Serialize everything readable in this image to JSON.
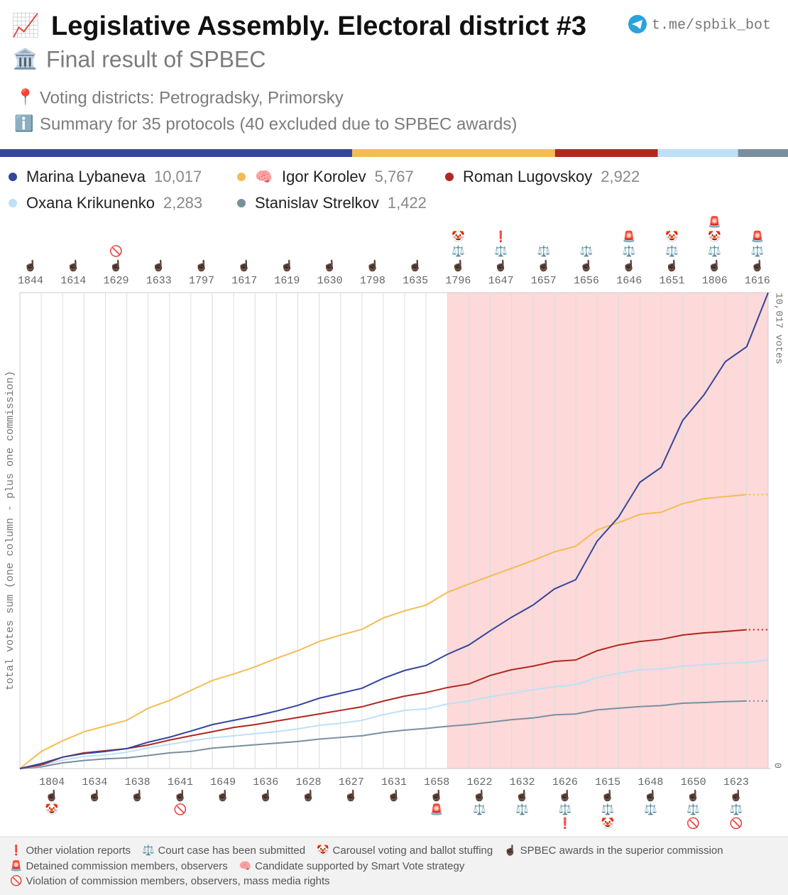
{
  "header": {
    "title_icon": "📈",
    "title": "Legislative Assembly. Electoral district #3",
    "subtitle_icon": "🏛️",
    "subtitle": "Final result of SPBEC",
    "link": "t.me/spbik_bot",
    "districts_icon": "📍",
    "districts": "Voting districts: Petrogradsky, Primorsky",
    "summary_icon": "ℹ️",
    "summary": "Summary for 35 protocols (40 excluded due to SPBEC awards)"
  },
  "chart_data": {
    "type": "line",
    "y_label": "total votes sum (one column - plus one commission)",
    "categories": [
      "1844",
      "1804",
      "1614",
      "1634",
      "1629",
      "1638",
      "1633",
      "1641",
      "1797",
      "1649",
      "1617",
      "1636",
      "1619",
      "1628",
      "1630",
      "1627",
      "1798",
      "1631",
      "1635",
      "1658",
      "1796",
      "1622",
      "1647",
      "1632",
      "1657",
      "1626",
      "1656",
      "1615",
      "1646",
      "1648",
      "1651",
      "1650",
      "1806",
      "1623",
      "1616"
    ],
    "icons": [
      [
        "☝🏿"
      ],
      [
        "☝🏿",
        "🤡"
      ],
      [
        "☝🏿"
      ],
      [
        "☝🏿"
      ],
      [
        "☝🏿",
        "🚫"
      ],
      [
        "☝🏿"
      ],
      [
        "☝🏿"
      ],
      [
        "☝🏿",
        "🚫"
      ],
      [
        "☝🏿"
      ],
      [
        "☝🏿"
      ],
      [
        "☝🏿"
      ],
      [
        "☝🏿"
      ],
      [
        "☝🏿"
      ],
      [
        "☝🏿"
      ],
      [
        "☝🏿"
      ],
      [
        "☝🏿"
      ],
      [
        "☝🏿"
      ],
      [
        "☝🏿"
      ],
      [
        "☝🏿"
      ],
      [
        "☝🏿",
        "🚨"
      ],
      [
        "☝🏿",
        "⚖️",
        "🤡"
      ],
      [
        "☝🏿",
        "⚖️"
      ],
      [
        "☝🏿",
        "⚖️",
        "❗"
      ],
      [
        "☝🏿",
        "⚖️"
      ],
      [
        "☝🏿",
        "⚖️"
      ],
      [
        "☝🏿",
        "⚖️",
        "❗"
      ],
      [
        "☝🏿",
        "⚖️"
      ],
      [
        "☝🏿",
        "⚖️",
        "🤡"
      ],
      [
        "☝🏿",
        "⚖️",
        "🚨"
      ],
      [
        "☝🏿",
        "⚖️"
      ],
      [
        "☝🏿",
        "⚖️",
        "🤡"
      ],
      [
        "☝🏿",
        "⚖️",
        "🚫"
      ],
      [
        "☝🏿",
        "⚖️",
        "🤡",
        "🚨"
      ],
      [
        "☝🏿",
        "⚖️",
        "🚫"
      ],
      [
        "☝🏿",
        "⚖️",
        "🚨"
      ]
    ],
    "shaded_from": "1796",
    "series": [
      {
        "name": "Marina Lybaneva",
        "color": "#34469a",
        "total": 10017,
        "total_label": "10,017",
        "values": [
          105,
          240,
          315,
          360,
          420,
          555,
          660,
          790,
          925,
          1015,
          1105,
          1210,
          1330,
          1480,
          1585,
          1690,
          1900,
          2065,
          2170,
          2405,
          2600,
          2900,
          3185,
          3440,
          3780,
          3975,
          4785,
          5290,
          6025,
          6340,
          7325,
          7865,
          8565,
          8880,
          10017
        ]
      },
      {
        "name": "Igor Korolev",
        "badge": "🧠",
        "color": "#f2bd52",
        "total": 5767,
        "total_label": "5,767",
        "values": [
          360,
          585,
          775,
          895,
          1015,
          1270,
          1435,
          1645,
          1855,
          1990,
          2140,
          2320,
          2480,
          2675,
          2810,
          2930,
          3170,
          3320,
          3440,
          3710,
          3885,
          4050,
          4215,
          4380,
          4560,
          4680,
          5025,
          5175,
          5350,
          5395,
          5575,
          5680,
          5725,
          5767,
          null
        ]
      },
      {
        "name": "Roman Lugovskoy",
        "color": "#b0281f",
        "total": 2922,
        "total_label": "2,922",
        "values": [
          75,
          240,
          330,
          375,
          420,
          495,
          600,
          690,
          775,
          865,
          925,
          1000,
          1075,
          1150,
          1225,
          1300,
          1420,
          1525,
          1600,
          1705,
          1780,
          1960,
          2080,
          2155,
          2255,
          2285,
          2480,
          2600,
          2675,
          2720,
          2810,
          2855,
          2885,
          2922,
          null
        ]
      },
      {
        "name": "Oxana Krikunenko",
        "color": "#bde0f7",
        "total": 2283,
        "total_label": "2,283",
        "values": [
          60,
          180,
          255,
          285,
          345,
          435,
          510,
          585,
          645,
          690,
          735,
          775,
          835,
          910,
          955,
          1015,
          1135,
          1225,
          1255,
          1360,
          1420,
          1510,
          1585,
          1660,
          1720,
          1765,
          1915,
          2005,
          2080,
          2095,
          2155,
          2185,
          2215,
          2230,
          2283
        ]
      },
      {
        "name": "Stanislav Strelkov",
        "color": "#7a8f9e",
        "total": 1422,
        "total_label": "1,422",
        "values": [
          35,
          120,
          170,
          205,
          225,
          275,
          330,
          360,
          430,
          465,
          500,
          535,
          570,
          620,
          655,
          690,
          760,
          810,
          845,
          890,
          925,
          975,
          1030,
          1065,
          1130,
          1150,
          1235,
          1270,
          1305,
          1325,
          1375,
          1390,
          1410,
          1422,
          null
        ]
      }
    ],
    "ylim": [
      0,
      10017
    ],
    "yticks": [
      0,
      {
        "value": 10017,
        "label": "10,017 votes"
      }
    ],
    "marker_legend": [
      {
        "icon": "❗",
        "label": "Other violation reports"
      },
      {
        "icon": "⚖️",
        "label": "Court case has been submitted"
      },
      {
        "icon": "🤡",
        "label": "Carousel voting and ballot stuffing"
      },
      {
        "icon": "☝🏿",
        "label": "SPBEC awards in the superior commission"
      },
      {
        "icon": "🚨",
        "label": "Detained commission members, observers"
      },
      {
        "icon": "🧠",
        "label": "Candidate supported by Smart Vote strategy"
      },
      {
        "icon": "🚫",
        "label": "Violation of commission members, observers, mass media rights"
      }
    ]
  }
}
